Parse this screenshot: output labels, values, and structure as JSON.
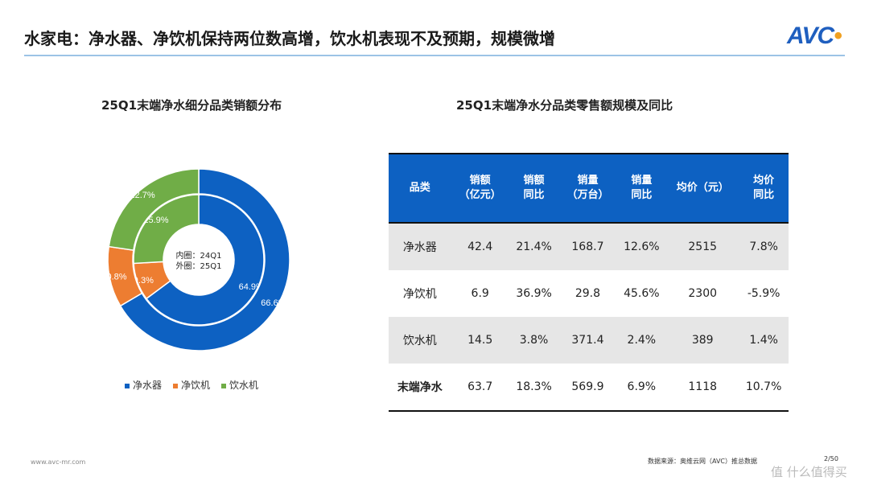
{
  "header": {
    "title": "水家电：净水器、净饮机保持两位数高增，饮水机表现不及预期，规模微增",
    "logo": "AVC"
  },
  "chart_data": {
    "type": "pie",
    "subtype": "double-donut",
    "title": "25Q1末端净水细分品类销额分布",
    "center_label": [
      "内圈：24Q1",
      "外圈：25Q1"
    ],
    "categories": [
      "净水器",
      "净饮机",
      "饮水机"
    ],
    "colors": [
      "#0d61c2",
      "#ed7d31",
      "#70ad47"
    ],
    "series": [
      {
        "name": "24Q1",
        "ring": "inner",
        "values": [
          64.9,
          9.3,
          25.9
        ],
        "labels": [
          "64.9%",
          "9.3%",
          "25.9%"
        ]
      },
      {
        "name": "25Q1",
        "ring": "outer",
        "values": [
          66.6,
          10.8,
          22.7
        ],
        "labels": [
          "66.6%",
          "10.8%",
          "22.7%"
        ]
      }
    ],
    "legend": "bottom"
  },
  "table": {
    "title": "25Q1末端净水分品类零售额规模及同比",
    "header_color": "#0d61c2",
    "columns": [
      [
        "品类"
      ],
      [
        "销额",
        "（亿元）"
      ],
      [
        "销额",
        "同比"
      ],
      [
        "销量",
        "（万台）"
      ],
      [
        "销量",
        "同比"
      ],
      [
        "均价（元）"
      ],
      [
        "均价",
        "同比"
      ]
    ],
    "rows": [
      [
        "净水器",
        "42.4",
        "21.4%",
        "168.7",
        "12.6%",
        "2515",
        "7.8%"
      ],
      [
        "净饮机",
        "6.9",
        "36.9%",
        "29.8",
        "45.6%",
        "2300",
        "-5.9%"
      ],
      [
        "饮水机",
        "14.5",
        "3.8%",
        "371.4",
        "2.4%",
        "389",
        "1.4%"
      ],
      [
        "末端净水",
        "63.7",
        "18.3%",
        "569.9",
        "6.9%",
        "1118",
        "10.7%"
      ]
    ]
  },
  "footer": {
    "website": "www.avc-mr.com",
    "source": "数据来源：奥维云网（AVC）推总数据",
    "page": "2/50",
    "watermark": "值 什么值得买"
  }
}
